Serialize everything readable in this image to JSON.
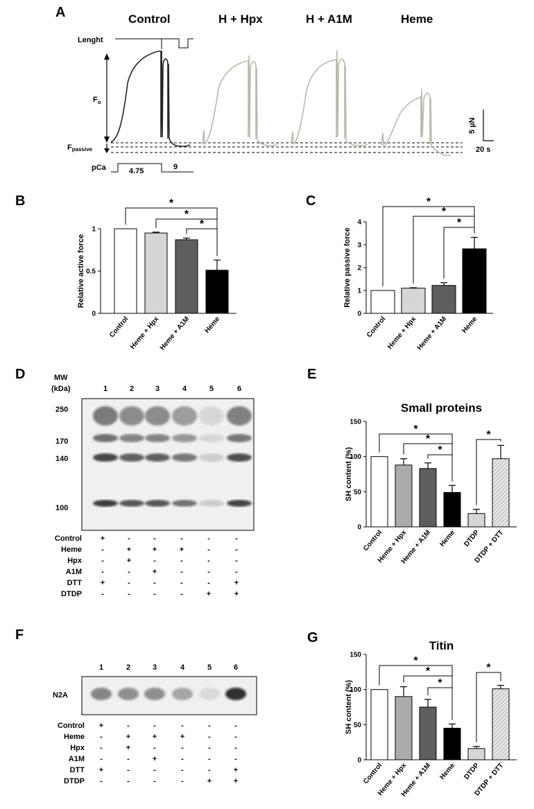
{
  "panels": [
    "A",
    "B",
    "C",
    "D",
    "E",
    "F",
    "G"
  ],
  "panel_a": {
    "conditions": [
      "Control",
      "H + Hpx",
      "H + A1M",
      "Heme"
    ],
    "length_label": "Lenght",
    "fo_label": "F",
    "fo_sub": "o",
    "fpassive_label": "F",
    "fpassive_sub": "passive",
    "pca_label": "pCa",
    "pca_values": [
      "4.75",
      "9"
    ],
    "scale_force": "5 µN",
    "scale_time": "20 s",
    "trace_colors": {
      "control": "#222222",
      "treated": "#b8b8ac"
    }
  },
  "gel_d": {
    "mw_title": "MW",
    "mw_unit": "(kDa)",
    "markers": [
      "250",
      "170",
      "140",
      "100"
    ],
    "lanes": [
      "1",
      "2",
      "3",
      "4",
      "5",
      "6"
    ],
    "rows": [
      {
        "label": "Control",
        "marks": [
          "+",
          "-",
          "-",
          "-",
          "-",
          "-"
        ]
      },
      {
        "label": "Heme",
        "marks": [
          "-",
          "+",
          "+",
          "+",
          "-",
          "-"
        ]
      },
      {
        "label": "Hpx",
        "marks": [
          "-",
          "+",
          "-",
          "-",
          "-",
          "-"
        ]
      },
      {
        "label": "A1M",
        "marks": [
          "-",
          "-",
          "+",
          "-",
          "-",
          "-"
        ]
      },
      {
        "label": "DTT",
        "marks": [
          "+",
          "-",
          "-",
          "-",
          "-",
          "+"
        ]
      },
      {
        "label": "DTDP",
        "marks": [
          "-",
          "-",
          "-",
          "-",
          "+",
          "+"
        ]
      }
    ]
  },
  "gel_f": {
    "band_label": "N2A",
    "lanes": [
      "1",
      "2",
      "3",
      "4",
      "5",
      "6"
    ],
    "rows": [
      {
        "label": "Control",
        "marks": [
          "+",
          "-",
          "-",
          "-",
          "-",
          "-"
        ]
      },
      {
        "label": "Heme",
        "marks": [
          "-",
          "+",
          "+",
          "+",
          "-",
          "-"
        ]
      },
      {
        "label": "Hpx",
        "marks": [
          "-",
          "+",
          "-",
          "-",
          "-",
          "-"
        ]
      },
      {
        "label": "A1M",
        "marks": [
          "-",
          "-",
          "+",
          "-",
          "-",
          "-"
        ]
      },
      {
        "label": "DTT",
        "marks": [
          "+",
          "-",
          "-",
          "-",
          "-",
          "+"
        ]
      },
      {
        "label": "DTDP",
        "marks": [
          "-",
          "-",
          "-",
          "-",
          "+",
          "+"
        ]
      }
    ]
  },
  "chart_data": [
    {
      "panel": "B",
      "type": "bar",
      "ylabel": "Relative active force",
      "categories": [
        "Control",
        "Heme + Hpx",
        "Heme + A1M",
        "Heme"
      ],
      "values": [
        1.0,
        0.95,
        0.87,
        0.51
      ],
      "errors": [
        0,
        0.01,
        0.02,
        0.12
      ],
      "colors": [
        "#ffffff",
        "#d6d6d6",
        "#5e5e5e",
        "#000000"
      ],
      "ylim": [
        0,
        1
      ],
      "yticks": [
        "0",
        "0.5",
        "1"
      ],
      "significance": [
        "*",
        "*",
        "*"
      ]
    },
    {
      "panel": "C",
      "type": "bar",
      "ylabel": "Relative passive force",
      "categories": [
        "Control",
        "Heme + Hpx",
        "Heme + A1M",
        "Heme"
      ],
      "values": [
        1.0,
        1.1,
        1.22,
        2.82
      ],
      "errors": [
        0,
        0.02,
        0.12,
        0.5
      ],
      "colors": [
        "#ffffff",
        "#d6d6d6",
        "#5e5e5e",
        "#000000"
      ],
      "ylim": [
        0,
        4
      ],
      "yticks": [
        "0",
        "1",
        "2",
        "3",
        "4"
      ],
      "significance": [
        "*",
        "*",
        "*"
      ]
    },
    {
      "panel": "E",
      "type": "bar",
      "title": "Small proteins",
      "ylabel": "SH content (%)",
      "categories": [
        "Control",
        "Heme + Hpx",
        "Heme + A1M",
        "Heme",
        "DTDP",
        "DTDP + DTT"
      ],
      "values": [
        100,
        88,
        83,
        49,
        19,
        97
      ],
      "errors": [
        0,
        9,
        8,
        10,
        6,
        19
      ],
      "colors": [
        "#ffffff",
        "#ababab",
        "#5e5e5e",
        "#000000",
        "#d6d6d6",
        "hatch"
      ],
      "ylim": [
        0,
        150
      ],
      "yticks": [
        "0",
        "50",
        "100",
        "150"
      ],
      "significance": [
        "*",
        "*",
        "*",
        "*"
      ]
    },
    {
      "panel": "G",
      "type": "bar",
      "title": "Titin",
      "ylabel": "SH content (%)",
      "categories": [
        "Control",
        "Heme + Hpx",
        "Heme + A1M",
        "Heme",
        "DTDP",
        "DTDP + DTT"
      ],
      "values": [
        100,
        90,
        75,
        45,
        16,
        101
      ],
      "errors": [
        0,
        14,
        11,
        6,
        3,
        5
      ],
      "colors": [
        "#ffffff",
        "#ababab",
        "#5e5e5e",
        "#000000",
        "#d6d6d6",
        "hatch"
      ],
      "ylim": [
        0,
        150
      ],
      "yticks": [
        "0",
        "50",
        "100",
        "150"
      ],
      "significance": [
        "*",
        "*",
        "*",
        "*"
      ]
    }
  ]
}
